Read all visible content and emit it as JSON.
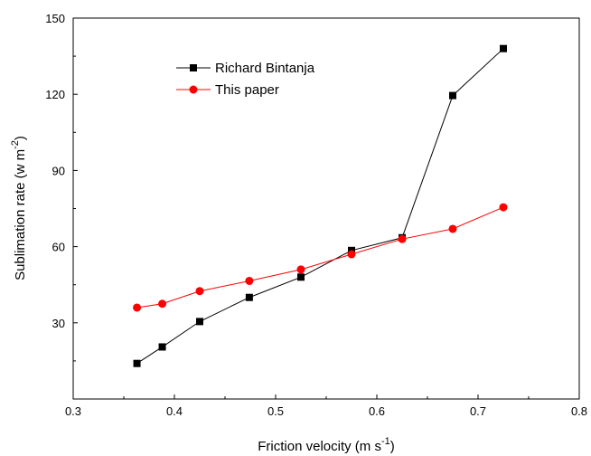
{
  "chart_data": {
    "type": "line",
    "xlabel": "Friction velocity (m s",
    "xlabel_sup": "-1",
    "xlabel_tail": ")",
    "ylabel": "Sublimation rate (w m",
    "ylabel_sup": "-2",
    "ylabel_tail": ")",
    "xlim": [
      0.3,
      0.8
    ],
    "ylim": [
      0,
      150
    ],
    "xticks": [
      "0.3",
      "0.4",
      "0.5",
      "0.6",
      "0.7",
      "0.8"
    ],
    "yticks": [
      "30",
      "60",
      "90",
      "120",
      "150"
    ],
    "legend_position": "top-left",
    "grid": false,
    "series": [
      {
        "name": "Richard Bintanja",
        "color": "#000000",
        "marker": "square",
        "x": [
          0.363,
          0.388,
          0.425,
          0.474,
          0.525,
          0.575,
          0.625,
          0.675,
          0.725
        ],
        "y": [
          14,
          20.5,
          30.5,
          40,
          48,
          58.5,
          63.5,
          119.5,
          138
        ]
      },
      {
        "name": "This paper",
        "color": "#ff0000",
        "marker": "circle",
        "x": [
          0.363,
          0.388,
          0.425,
          0.474,
          0.525,
          0.575,
          0.625,
          0.675,
          0.725
        ],
        "y": [
          36,
          37.5,
          42.5,
          46.5,
          51,
          57,
          63,
          67,
          75.5
        ]
      }
    ]
  }
}
